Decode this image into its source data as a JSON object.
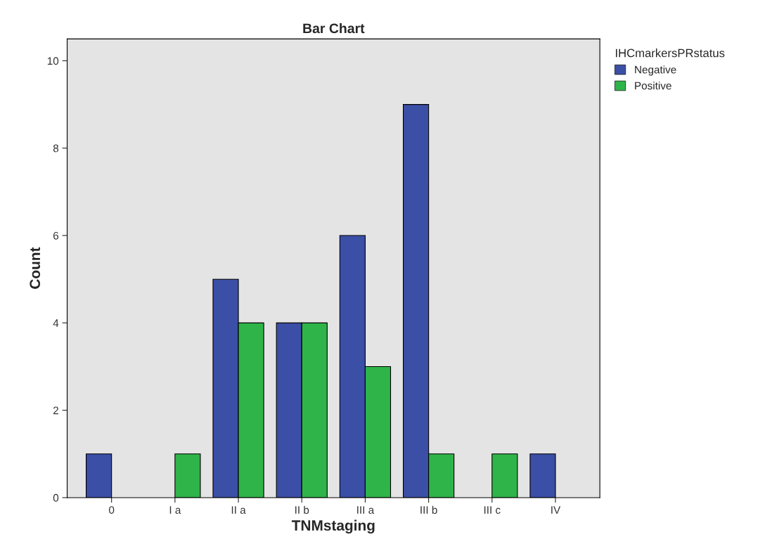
{
  "chart_data": {
    "type": "bar",
    "title": "Bar Chart",
    "xlabel": "TNMstaging",
    "ylabel": "Count",
    "legend_title": "IHCmarkersPRstatus",
    "categories": [
      "0",
      "I a",
      "II a",
      "II b",
      "III a",
      "III b",
      "III c",
      "IV"
    ],
    "series": [
      {
        "name": "Negative",
        "color": "#3b4fa6",
        "values": [
          1,
          null,
          5,
          4,
          6,
          9,
          null,
          1
        ]
      },
      {
        "name": "Positive",
        "color": "#2fb44a",
        "values": [
          null,
          1,
          4,
          4,
          3,
          1,
          1,
          null
        ]
      }
    ],
    "ylim": [
      0,
      10.5
    ],
    "yticks": [
      0,
      2,
      4,
      6,
      8,
      10
    ],
    "grid": false,
    "legend": "top right"
  }
}
